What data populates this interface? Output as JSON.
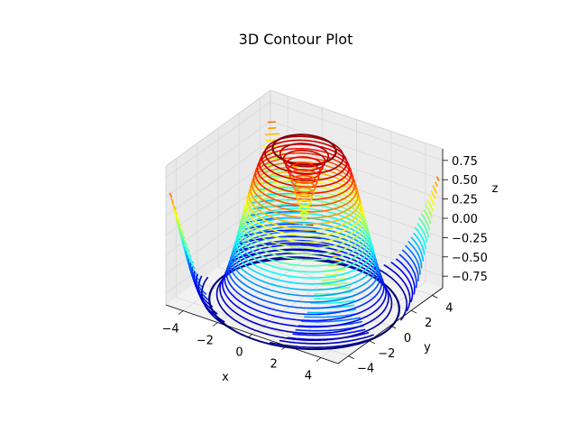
{
  "chart_data": {
    "type": "3d-contour",
    "title": "3D Contour Plot",
    "xlabel": "x",
    "ylabel": "y",
    "zlabel": "z",
    "xlim": [
      -5,
      5
    ],
    "ylim": [
      -5,
      5
    ],
    "zlim": [
      -0.9,
      0.9
    ],
    "xticks": [
      -4,
      -2,
      0,
      2,
      4
    ],
    "yticks": [
      -4,
      -2,
      0,
      2,
      4
    ],
    "zticks": [
      0.75,
      0.5,
      0.25,
      0.0,
      -0.25,
      -0.5,
      -0.75
    ],
    "xtick_labels": [
      "−4",
      "−2",
      "0",
      "2",
      "4"
    ],
    "ytick_labels": [
      "−4",
      "−2",
      "0",
      "2",
      "4"
    ],
    "ztick_labels": [
      "0.75",
      "0.50",
      "0.25",
      "0.00",
      "−0.25",
      "−0.50",
      "−0.75"
    ],
    "colormap": "jet",
    "function": "z = sin(sqrt(x^2 + y^2))",
    "contour_levels": 30,
    "grid": true,
    "pane_color": "#f2f2f2",
    "grid_color": "#d9d9d9"
  }
}
